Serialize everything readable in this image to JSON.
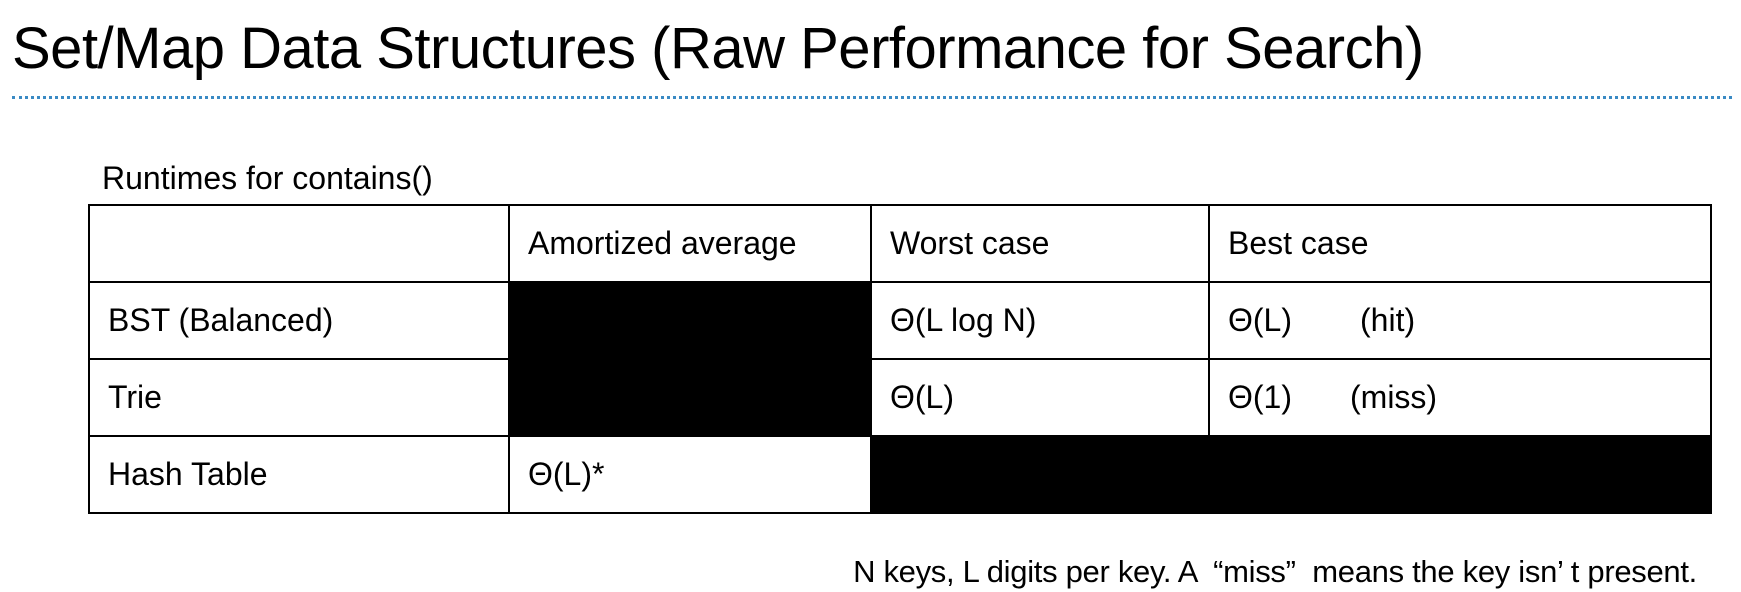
{
  "title": "Set/Map Data Structures (Raw Performance for Search)",
  "table": {
    "caption": "Runtimes for contains()",
    "headers": [
      "",
      "Amortized average",
      "Worst case",
      "Best case"
    ],
    "rows": [
      {
        "label": "BST (Balanced)",
        "amortized_average": null,
        "worst_case": "Θ(L log N)",
        "best_case": "Θ(L)",
        "best_case_note": "(hit)"
      },
      {
        "label": "Trie",
        "amortized_average": null,
        "worst_case": "Θ(L)",
        "best_case": "Θ(1)",
        "best_case_note": "(miss)"
      },
      {
        "label": "Hash Table",
        "amortized_average": "Θ(L)*",
        "worst_case": null,
        "best_case": null,
        "best_case_note": null
      }
    ]
  },
  "footnote": "N keys, L digits per key. A  “miss”  means the key isn’ t present.",
  "colors": {
    "rule": "#3a8ac4",
    "blackout": "#000000",
    "text": "#000000",
    "background": "#ffffff"
  }
}
